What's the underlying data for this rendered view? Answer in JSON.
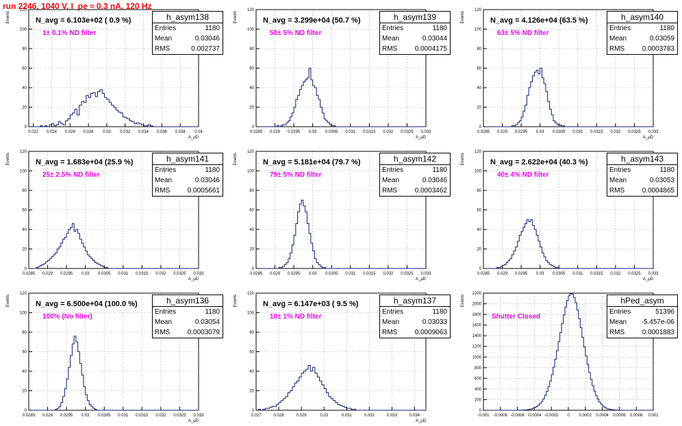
{
  "title": "run 2246,  1040 V, I_pe ≈ 0.3 nA, 120 Hz",
  "chart_data": [
    {
      "type": "bar",
      "hist": "h_asym138",
      "navg": "N_avg = 6.103e+02 ( 0.9 %)",
      "filter": "1± 0.1% ND filter",
      "entries": "1180",
      "mean": "0.03046",
      "rms": "0.002737",
      "ylabel": "Events",
      "xlabel": "A_μD",
      "xlim": [
        0.0215,
        0.04
      ],
      "ylim": [
        0,
        120
      ],
      "xticks": [
        "0.022",
        "0.024",
        "0.026",
        "0.028",
        "0.03",
        "0.032",
        "0.034",
        "0.036",
        "0.038",
        "0.04"
      ],
      "yticks": [
        "0",
        "20",
        "40",
        "60",
        "80",
        "100",
        "120"
      ],
      "bins": {
        "min": 0.0215,
        "width": 0.00025,
        "values": [
          0,
          0,
          0,
          0,
          0,
          1,
          0,
          1,
          0,
          2,
          3,
          1,
          2,
          5,
          3,
          2,
          6,
          8,
          12,
          14,
          18,
          12,
          22,
          26,
          25,
          32,
          30,
          34,
          35,
          31,
          36,
          38,
          34,
          30,
          28,
          25,
          22,
          20,
          17,
          15,
          14,
          10,
          9,
          8,
          6,
          5,
          3,
          4,
          3,
          2,
          1,
          1,
          2,
          1,
          0,
          0,
          0,
          0,
          0,
          0,
          0,
          0,
          0,
          0,
          0,
          0,
          0,
          0,
          0,
          0,
          0,
          0,
          0,
          0,
          0
        ]
      }
    },
    {
      "type": "bar",
      "hist": "h_asym139",
      "navg": "N_avg = 3.299e+04 (50.7 %)",
      "filter": "50± 5% ND filter",
      "entries": "1180",
      "mean": "0.03044",
      "rms": "0.0004175",
      "ylabel": "Events",
      "xlabel": "A_μD",
      "xlim": [
        0.0285,
        0.033
      ],
      "ylim": [
        0,
        120
      ],
      "xticks": [
        "0.0285",
        "0.029",
        "0.0295",
        "0.03",
        "0.0305",
        "0.031",
        "0.0315",
        "0.032",
        "0.0325",
        "0.033"
      ],
      "yticks": [
        "0",
        "20",
        "40",
        "60",
        "80",
        "100",
        "120"
      ],
      "bins": {
        "min": 0.0285,
        "width": 5e-05,
        "values": [
          0,
          0,
          0,
          0,
          0,
          0,
          0,
          0,
          0,
          0,
          0,
          1,
          0,
          1,
          2,
          2,
          4,
          6,
          10,
          14,
          20,
          28,
          32,
          38,
          42,
          46,
          48,
          50,
          60,
          48,
          42,
          40,
          32,
          28,
          20,
          14,
          8,
          6,
          4,
          2,
          1,
          1,
          0,
          0,
          0,
          0,
          0,
          0,
          0,
          0,
          0,
          0,
          0,
          0,
          0,
          0,
          0,
          0,
          0,
          0,
          0,
          0,
          0,
          0,
          0,
          0,
          0,
          0,
          0,
          0,
          0,
          0,
          0,
          0,
          0,
          0,
          0,
          0,
          0,
          0,
          0,
          0,
          0,
          0,
          0,
          0,
          0,
          0,
          0,
          0
        ]
      }
    },
    {
      "type": "bar",
      "hist": "h_asym140",
      "navg": "N_avg = 4.126e+04 (63.5 %)",
      "filter": "63± 5% ND filter",
      "entries": "1180",
      "mean": "0.03059",
      "rms": "0.0003783",
      "ylabel": "Events",
      "xlabel": "A_μD",
      "xlim": [
        0.0285,
        0.033
      ],
      "ylim": [
        0,
        120
      ],
      "xticks": [
        "0.0285",
        "0.029",
        "0.0295",
        "0.03",
        "0.0305",
        "0.031",
        "0.0315",
        "0.032",
        "0.0325",
        "0.033"
      ],
      "yticks": [
        "0",
        "20",
        "40",
        "60",
        "80",
        "100",
        "120"
      ],
      "bins": {
        "min": 0.0285,
        "width": 5e-05,
        "values": [
          0,
          0,
          0,
          0,
          0,
          0,
          0,
          0,
          0,
          0,
          0,
          0,
          0,
          0,
          0,
          1,
          1,
          2,
          4,
          6,
          10,
          16,
          22,
          32,
          40,
          46,
          52,
          56,
          58,
          54,
          60,
          50,
          44,
          36,
          26,
          18,
          12,
          6,
          4,
          2,
          2,
          1,
          1,
          0,
          0,
          0,
          0,
          0,
          0,
          0,
          0,
          0,
          0,
          0,
          0,
          0,
          0,
          0,
          0,
          0,
          0,
          0,
          0,
          0,
          0,
          0,
          0,
          0,
          0,
          0,
          0,
          0,
          0,
          0,
          0,
          0,
          0,
          0,
          0,
          0,
          0,
          0,
          0,
          0,
          0,
          0,
          0,
          0,
          0,
          0
        ]
      }
    },
    {
      "type": "bar",
      "hist": "h_asym141",
      "navg": "N_avg = 1.683e+04 (25.9 %)",
      "filter": "25± 2.5% ND filter",
      "entries": "1180",
      "mean": "0.03046",
      "rms": "0.0005661",
      "ylabel": "Events",
      "xlabel": "A_μD",
      "xlim": [
        0.0285,
        0.033
      ],
      "ylim": [
        0,
        120
      ],
      "xticks": [
        "0.0285",
        "0.029",
        "0.0295",
        "0.03",
        "0.0305",
        "0.031",
        "0.0315",
        "0.032",
        "0.0325",
        "0.033"
      ],
      "yticks": [
        "0",
        "20",
        "40",
        "60",
        "80",
        "100",
        "120"
      ],
      "bins": {
        "min": 0.0285,
        "width": 5e-05,
        "values": [
          0,
          0,
          0,
          0,
          1,
          2,
          3,
          4,
          5,
          7,
          8,
          10,
          12,
          14,
          16,
          20,
          22,
          26,
          30,
          32,
          36,
          40,
          42,
          46,
          38,
          40,
          36,
          30,
          26,
          22,
          18,
          14,
          12,
          10,
          8,
          6,
          5,
          4,
          3,
          2,
          1,
          1,
          0,
          0,
          0,
          0,
          0,
          0,
          0,
          0,
          0,
          0,
          0,
          0,
          0,
          0,
          0,
          0,
          0,
          0,
          0,
          0,
          0,
          0,
          0,
          0,
          0,
          0,
          0,
          0,
          0,
          0,
          0,
          0,
          0,
          0,
          0,
          0,
          0,
          0,
          0,
          0,
          0,
          0,
          0,
          0,
          0,
          0,
          0,
          0
        ]
      }
    },
    {
      "type": "bar",
      "hist": "h_asym142",
      "navg": "N_avg = 5.181e+04 (79.7 %)",
      "filter": "79± 5% ND filter",
      "entries": "1180",
      "mean": "0.03046",
      "rms": "0.0003462",
      "ylabel": "Events",
      "xlabel": "A_μD",
      "xlim": [
        0.0285,
        0.033
      ],
      "ylim": [
        0,
        120
      ],
      "xticks": [
        "0.0285",
        "0.029",
        "0.0295",
        "0.03",
        "0.0305",
        "0.031",
        "0.0315",
        "0.032",
        "0.0325",
        "0.033"
      ],
      "yticks": [
        "0",
        "20",
        "40",
        "60",
        "80",
        "100",
        "120"
      ],
      "bins": {
        "min": 0.0285,
        "width": 5e-05,
        "values": [
          0,
          0,
          0,
          0,
          0,
          0,
          0,
          0,
          0,
          0,
          0,
          0,
          1,
          1,
          2,
          4,
          6,
          10,
          16,
          24,
          34,
          46,
          58,
          66,
          70,
          64,
          58,
          46,
          36,
          26,
          18,
          10,
          6,
          4,
          2,
          1,
          1,
          0,
          0,
          0,
          0,
          0,
          0,
          0,
          0,
          0,
          0,
          0,
          0,
          0,
          0,
          0,
          0,
          0,
          0,
          0,
          0,
          0,
          0,
          0,
          0,
          0,
          0,
          0,
          0,
          0,
          0,
          0,
          0,
          0,
          0,
          0,
          0,
          0,
          0,
          0,
          0,
          0,
          0,
          0,
          0,
          0,
          0,
          0,
          0,
          0,
          0,
          0,
          0,
          0
        ]
      }
    },
    {
      "type": "bar",
      "hist": "h_asym143",
      "navg": "N_avg = 2.622e+04 (40.3 %)",
      "filter": "40± 4% ND filter",
      "entries": "1180",
      "mean": "0.03053",
      "rms": "0.0004865",
      "ylabel": "Events",
      "xlabel": "A_μD",
      "xlim": [
        0.0285,
        0.033
      ],
      "ylim": [
        0,
        120
      ],
      "xticks": [
        "0.0285",
        "0.029",
        "0.0295",
        "0.03",
        "0.0305",
        "0.031",
        "0.0315",
        "0.032",
        "0.0325",
        "0.033"
      ],
      "yticks": [
        "0",
        "20",
        "40",
        "60",
        "80",
        "100",
        "120"
      ],
      "bins": {
        "min": 0.0285,
        "width": 5e-05,
        "values": [
          0,
          0,
          0,
          0,
          0,
          0,
          0,
          1,
          1,
          2,
          3,
          4,
          6,
          8,
          10,
          14,
          18,
          22,
          28,
          34,
          38,
          42,
          46,
          50,
          48,
          50,
          44,
          40,
          34,
          28,
          22,
          16,
          12,
          8,
          6,
          4,
          3,
          2,
          1,
          1,
          0,
          0,
          0,
          0,
          0,
          0,
          0,
          0,
          0,
          0,
          0,
          0,
          0,
          0,
          0,
          0,
          0,
          0,
          0,
          0,
          0,
          0,
          0,
          0,
          0,
          0,
          0,
          0,
          0,
          0,
          0,
          0,
          0,
          0,
          0,
          0,
          0,
          0,
          0,
          0,
          0,
          0,
          0,
          0,
          0,
          0,
          0,
          0,
          0,
          0
        ]
      }
    },
    {
      "type": "bar",
      "hist": "h_asym136",
      "navg": "N_avg = 6.500e+04 (100.0 %)",
      "filter": "100% (No filter)",
      "entries": "1180",
      "mean": "0.03054",
      "rms": "0.0003079",
      "ylabel": "Events",
      "xlabel": "A_μD",
      "xlim": [
        0.0285,
        0.033
      ],
      "ylim": [
        0,
        120
      ],
      "xticks": [
        "0.0285",
        "0.029",
        "0.0295",
        "0.03",
        "0.0305",
        "0.031",
        "0.0315",
        "0.032",
        "0.0325",
        "0.033"
      ],
      "yticks": [
        "0",
        "20",
        "40",
        "60",
        "80",
        "100",
        "120"
      ],
      "bins": {
        "min": 0.0285,
        "width": 5e-05,
        "values": [
          0,
          0,
          0,
          0,
          0,
          0,
          0,
          0,
          0,
          0,
          0,
          0,
          0,
          0,
          1,
          2,
          4,
          8,
          14,
          22,
          32,
          44,
          56,
          68,
          76,
          70,
          60,
          48,
          36,
          24,
          16,
          10,
          6,
          4,
          2,
          1,
          0,
          0,
          0,
          0,
          0,
          0,
          0,
          0,
          0,
          0,
          0,
          0,
          0,
          0,
          0,
          0,
          0,
          0,
          0,
          0,
          0,
          0,
          0,
          0,
          0,
          0,
          0,
          0,
          0,
          0,
          0,
          0,
          0,
          0,
          0,
          0,
          0,
          0,
          0,
          0,
          0,
          0,
          0,
          0,
          0,
          0,
          0,
          0,
          0,
          0,
          0,
          0,
          0,
          0
        ]
      }
    },
    {
      "type": "bar",
      "hist": "h_asym137",
      "navg": "N_avg = 6.147e+03 ( 9.5 %)",
      "filter": "10± 1% ND filter",
      "entries": "1180",
      "mean": "0.03033",
      "rms": "0.0009063",
      "ylabel": "Events",
      "xlabel": "A_μD",
      "xlim": [
        0.027,
        0.0345
      ],
      "ylim": [
        0,
        120
      ],
      "xticks": [
        "0.027",
        "0.028",
        "0.029",
        "0.03",
        "0.031",
        "0.032",
        "0.033",
        "0.034"
      ],
      "yticks": [
        "0",
        "20",
        "40",
        "60",
        "80",
        "100",
        "120"
      ],
      "bins": {
        "min": 0.027,
        "width": 0.0001,
        "values": [
          0,
          1,
          0,
          1,
          2,
          2,
          3,
          4,
          4,
          6,
          8,
          10,
          12,
          14,
          18,
          20,
          24,
          28,
          30,
          34,
          38,
          40,
          42,
          46,
          40,
          44,
          38,
          34,
          30,
          26,
          22,
          18,
          14,
          12,
          10,
          8,
          6,
          5,
          4,
          3,
          2,
          2,
          1,
          1,
          0,
          0,
          0,
          0,
          0,
          0,
          0,
          0,
          0,
          0,
          0,
          0,
          0,
          0,
          0,
          0,
          0,
          0,
          0,
          0,
          0,
          0,
          0,
          0,
          0,
          0,
          0,
          0,
          0,
          0,
          0
        ]
      }
    },
    {
      "type": "bar",
      "hist": "hPed_asym",
      "navg": "",
      "filter": "Shutter Closed",
      "entries": "51396",
      "mean": "-5.457e-06",
      "rms": "0.0001883",
      "ylabel": "Events",
      "xlabel": "",
      "xlim": [
        -0.001,
        0.001
      ],
      "ylim": [
        0,
        2200
      ],
      "xticks": [
        "-0.001",
        "-0.0008",
        "-0.0006",
        "-0.0004",
        "-0.0002",
        "0",
        "0.0002",
        "0.0004",
        "0.0006",
        "0.0008",
        "0.001"
      ],
      "yticks": [
        "0",
        "200",
        "400",
        "600",
        "800",
        "1000",
        "1200",
        "1400",
        "1600",
        "1800",
        "2000",
        "2200"
      ],
      "bins": {
        "min": -0.001,
        "width": 2e-05,
        "values": [
          0,
          0,
          0,
          0,
          0,
          0,
          0,
          0,
          0,
          0,
          0,
          0,
          0,
          0,
          0,
          0,
          0,
          0,
          0,
          0,
          0,
          1,
          2,
          3,
          5,
          8,
          12,
          18,
          26,
          38,
          52,
          70,
          95,
          125,
          165,
          215,
          280,
          355,
          445,
          550,
          670,
          810,
          960,
          1120,
          1290,
          1460,
          1630,
          1790,
          1940,
          2060,
          2150,
          2190,
          2180,
          2120,
          2020,
          1880,
          1720,
          1550,
          1370,
          1190,
          1020,
          860,
          710,
          580,
          460,
          360,
          280,
          210,
          155,
          115,
          80,
          56,
          38,
          26,
          18,
          12,
          8,
          5,
          3,
          2,
          1,
          1,
          0,
          0,
          0,
          0,
          0,
          0,
          0,
          0,
          0,
          0,
          0,
          0,
          0,
          0,
          0,
          0,
          0,
          0
        ]
      }
    }
  ]
}
